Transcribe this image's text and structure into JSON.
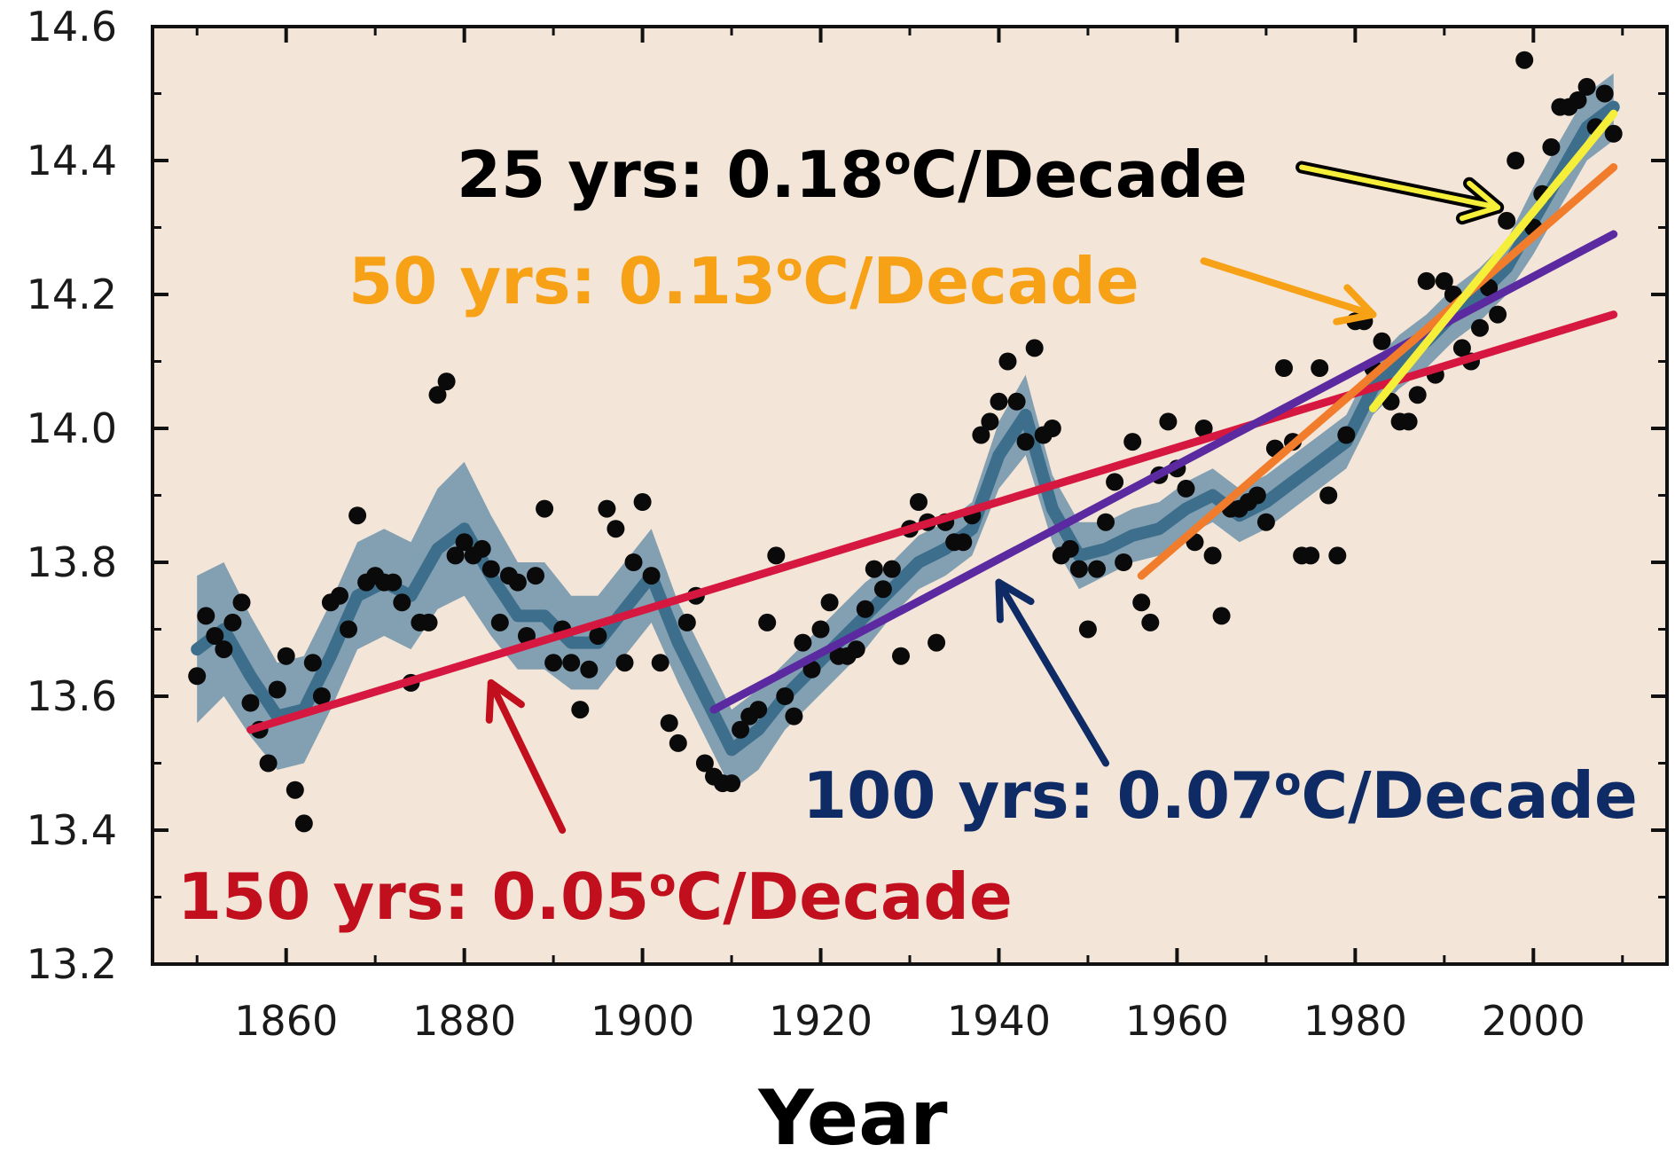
{
  "chart_data": {
    "type": "line",
    "title": "",
    "xlabel": "Year",
    "ylabel": "",
    "xlim": [
      1845,
      2015
    ],
    "ylim": [
      13.2,
      14.6
    ],
    "x_ticks": [
      "1860",
      "1880",
      "1900",
      "1920",
      "1940",
      "1960",
      "1980",
      "2000"
    ],
    "y_ticks": [
      "13.2",
      "13.4",
      "13.6",
      "13.8",
      "14.0",
      "14.2",
      "14.4",
      "14.6"
    ],
    "grid": false,
    "colors": {
      "plot_background": "#f3e5d7",
      "scatter": "#0a0a0a",
      "smooth_line": "#3d6f8c",
      "smooth_band": "#6f93ab",
      "trend_150": "#d61840",
      "trend_100": "#5b2aa0",
      "trend_50": "#f07c2c",
      "trend_25": "#f5ef3a",
      "label_150": "#c20f1e",
      "label_100": "#0e2b66",
      "label_50": "#f7a117",
      "label_25": "#000000"
    },
    "scatter": {
      "x": [
        1850,
        1851,
        1852,
        1853,
        1854,
        1855,
        1856,
        1857,
        1858,
        1859,
        1860,
        1861,
        1862,
        1863,
        1864,
        1865,
        1866,
        1867,
        1868,
        1869,
        1870,
        1871,
        1872,
        1873,
        1874,
        1875,
        1876,
        1877,
        1878,
        1879,
        1880,
        1881,
        1882,
        1883,
        1884,
        1885,
        1886,
        1887,
        1888,
        1889,
        1890,
        1891,
        1892,
        1893,
        1894,
        1895,
        1896,
        1897,
        1898,
        1899,
        1900,
        1901,
        1902,
        1903,
        1904,
        1905,
        1906,
        1907,
        1908,
        1909,
        1910,
        1911,
        1912,
        1913,
        1914,
        1915,
        1916,
        1917,
        1918,
        1919,
        1920,
        1921,
        1922,
        1923,
        1924,
        1925,
        1926,
        1927,
        1928,
        1929,
        1930,
        1931,
        1932,
        1933,
        1934,
        1935,
        1936,
        1937,
        1938,
        1939,
        1940,
        1941,
        1942,
        1943,
        1944,
        1945,
        1946,
        1947,
        1948,
        1949,
        1950,
        1951,
        1952,
        1953,
        1954,
        1955,
        1956,
        1957,
        1958,
        1959,
        1960,
        1961,
        1962,
        1963,
        1964,
        1965,
        1966,
        1967,
        1968,
        1969,
        1970,
        1971,
        1972,
        1973,
        1974,
        1975,
        1976,
        1977,
        1978,
        1979,
        1980,
        1981,
        1982,
        1983,
        1984,
        1985,
        1986,
        1987,
        1988,
        1989,
        1990,
        1991,
        1992,
        1993,
        1994,
        1995,
        1996,
        1997,
        1998,
        1999,
        2000,
        2001,
        2002,
        2003,
        2004,
        2005,
        2006,
        2007,
        2008,
        2009
      ],
      "y": [
        13.63,
        13.72,
        13.69,
        13.67,
        13.71,
        13.74,
        13.59,
        13.55,
        13.5,
        13.61,
        13.66,
        13.46,
        13.41,
        13.65,
        13.6,
        13.74,
        13.75,
        13.7,
        13.87,
        13.77,
        13.78,
        13.77,
        13.77,
        13.74,
        13.62,
        13.71,
        13.71,
        14.05,
        14.07,
        13.81,
        13.83,
        13.81,
        13.82,
        13.79,
        13.71,
        13.78,
        13.77,
        13.69,
        13.78,
        13.88,
        13.65,
        13.7,
        13.65,
        13.58,
        13.64,
        13.69,
        13.88,
        13.85,
        13.65,
        13.8,
        13.89,
        13.78,
        13.65,
        13.56,
        13.53,
        13.71,
        13.75,
        13.5,
        13.48,
        13.47,
        13.47,
        13.55,
        13.57,
        13.58,
        13.71,
        13.81,
        13.6,
        13.57,
        13.68,
        13.64,
        13.7,
        13.74,
        13.66,
        13.66,
        13.67,
        13.73,
        13.79,
        13.76,
        13.79,
        13.66,
        13.85,
        13.89,
        13.86,
        13.68,
        13.86,
        13.83,
        13.83,
        13.87,
        13.99,
        14.01,
        14.04,
        14.1,
        14.04,
        13.98,
        14.12,
        13.99,
        14.0,
        13.81,
        13.82,
        13.79,
        13.7,
        13.79,
        13.86,
        13.92,
        13.8,
        13.98,
        13.74,
        13.71,
        13.93,
        14.01,
        13.94,
        13.91,
        13.83,
        14.0,
        13.81,
        13.72,
        13.88,
        13.88,
        13.89,
        13.9,
        13.86,
        13.97,
        14.09,
        13.98,
        13.81,
        13.81,
        14.09,
        13.9,
        13.81,
        13.99,
        14.16,
        14.16,
        14.09,
        14.13,
        14.04,
        14.01,
        14.01,
        14.05,
        14.22,
        14.08,
        14.22,
        14.2,
        14.12,
        14.1,
        14.15,
        14.21,
        14.17,
        14.31,
        14.4,
        14.55,
        14.3,
        14.35,
        14.42,
        14.48,
        14.48,
        14.49,
        14.51,
        14.45,
        14.5,
        14.44
      ]
    },
    "smoothed": {
      "x": [
        1850,
        1853,
        1856,
        1859,
        1862,
        1865,
        1868,
        1871,
        1874,
        1877,
        1880,
        1883,
        1886,
        1889,
        1892,
        1895,
        1898,
        1901,
        1904,
        1907,
        1910,
        1913,
        1916,
        1919,
        1922,
        1925,
        1928,
        1931,
        1934,
        1937,
        1940,
        1943,
        1946,
        1949,
        1952,
        1955,
        1958,
        1961,
        1964,
        1967,
        1970,
        1973,
        1976,
        1979,
        1982,
        1985,
        1988,
        1991,
        1994,
        1997,
        2000,
        2003,
        2006,
        2009
      ],
      "y": [
        13.67,
        13.7,
        13.63,
        13.57,
        13.58,
        13.66,
        13.75,
        13.77,
        13.75,
        13.82,
        13.85,
        13.78,
        13.72,
        13.72,
        13.68,
        13.68,
        13.73,
        13.78,
        13.68,
        13.6,
        13.52,
        13.55,
        13.6,
        13.64,
        13.68,
        13.72,
        13.76,
        13.8,
        13.82,
        13.85,
        13.96,
        14.02,
        13.88,
        13.81,
        13.82,
        13.84,
        13.85,
        13.88,
        13.9,
        13.87,
        13.89,
        13.92,
        13.95,
        13.98,
        14.06,
        14.1,
        14.13,
        14.17,
        14.2,
        14.24,
        14.31,
        14.38,
        14.45,
        14.48
      ],
      "band_halfwidth": [
        0.11,
        0.1,
        0.09,
        0.08,
        0.08,
        0.08,
        0.08,
        0.08,
        0.08,
        0.09,
        0.1,
        0.09,
        0.08,
        0.08,
        0.07,
        0.07,
        0.07,
        0.07,
        0.06,
        0.06,
        0.06,
        0.06,
        0.05,
        0.05,
        0.05,
        0.05,
        0.04,
        0.04,
        0.04,
        0.04,
        0.05,
        0.06,
        0.05,
        0.05,
        0.04,
        0.04,
        0.04,
        0.04,
        0.04,
        0.04,
        0.04,
        0.04,
        0.04,
        0.04,
        0.04,
        0.04,
        0.04,
        0.04,
        0.04,
        0.04,
        0.05,
        0.05,
        0.05,
        0.05
      ]
    },
    "trend_lines": [
      {
        "id": "150",
        "x": [
          1856,
          2009
        ],
        "y": [
          13.55,
          14.17
        ],
        "label": "150 yrs: 0.05",
        "unit_sup": "o",
        "unit": "C/Decade",
        "label_pos": "bottom-left",
        "arrow_to": [
          1883,
          13.62
        ],
        "arrow_from": [
          1891,
          13.4
        ]
      },
      {
        "id": "100",
        "x": [
          1908,
          2009
        ],
        "y": [
          13.58,
          14.29
        ],
        "label": "100 yrs: 0.07",
        "unit_sup": "o",
        "unit": "C/Decade",
        "label_pos": "bottom-right",
        "arrow_to": [
          1940,
          13.77
        ],
        "arrow_from": [
          1952,
          13.5
        ]
      },
      {
        "id": "50",
        "x": [
          1956,
          2009
        ],
        "y": [
          13.78,
          14.39
        ],
        "label": "50 yrs: 0.13",
        "unit_sup": "o",
        "unit": "C/Decade",
        "label_pos": "upper-center",
        "arrow_to": [
          1982,
          14.17
        ],
        "arrow_from": [
          1963,
          14.25
        ]
      },
      {
        "id": "25",
        "x": [
          1982,
          2009
        ],
        "y": [
          14.03,
          14.47
        ],
        "label": "25 yrs: 0.18",
        "unit_sup": "o",
        "unit": "C/Decade",
        "label_pos": "top-center",
        "arrow_to": [
          1996,
          14.33
        ],
        "arrow_from": [
          1974,
          14.39
        ]
      }
    ]
  }
}
